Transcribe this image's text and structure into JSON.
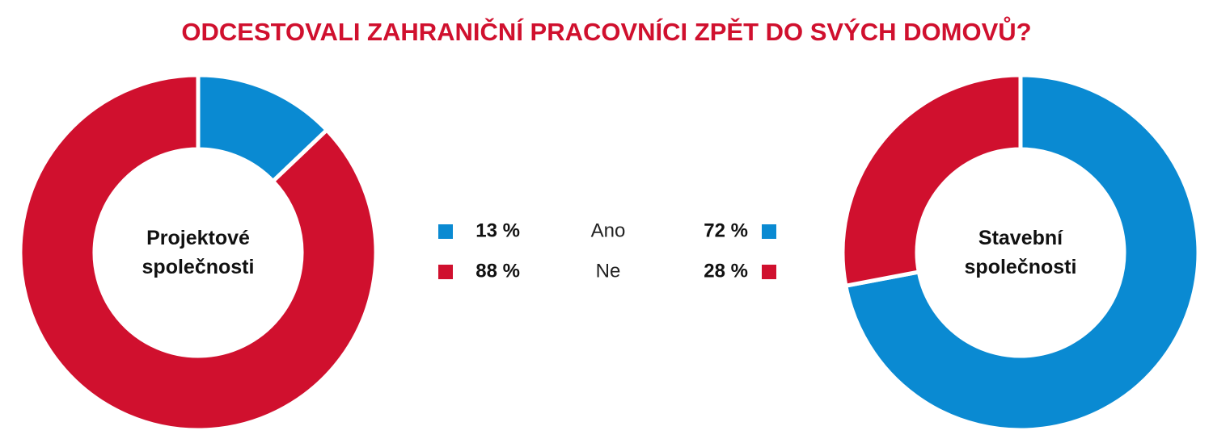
{
  "title": "ODCESTOVALI ZAHRANIČNÍ PRACOVNÍCI ZPĚT DO SVÝCH DOMOVŮ?",
  "chart_data": [
    {
      "type": "donut",
      "center_label": "Projektové společnosti",
      "categories": [
        "Ano",
        "Ne"
      ],
      "values": [
        13,
        88
      ],
      "value_labels": [
        "13 %",
        "88 %"
      ],
      "colors": [
        "#0a8ad2",
        "#d0102e"
      ]
    },
    {
      "type": "donut",
      "center_label": "Stavební společnosti",
      "values": [
        72,
        28
      ],
      "value_labels": [
        "72 %",
        "28 %"
      ],
      "colors": [
        "#0a8ad2",
        "#d0102e"
      ]
    }
  ]
}
